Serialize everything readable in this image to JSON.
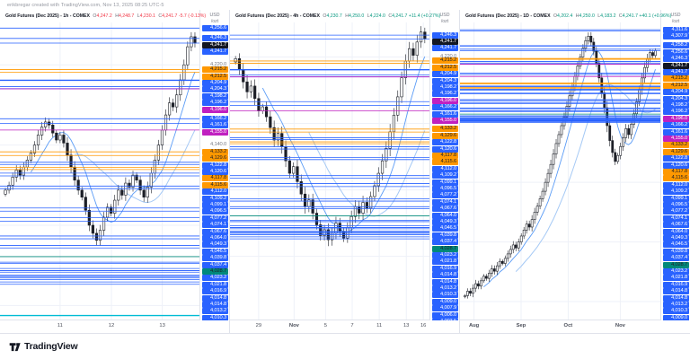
{
  "header": {
    "credit": "erikbregar created with TradingView.com, Nov 13, 2025 08:25 UTC-5"
  },
  "footer": {
    "brand": "TradingView"
  },
  "scale_header": {
    "currency": "USD",
    "unit": "/ozt"
  },
  "colors": {
    "blue": "#2962ff",
    "orange": "#ff9800",
    "magenta": "#c020c0",
    "teal": "#00897b",
    "current_bg": "#131722",
    "up": "#ffffff",
    "down": "#1c1f27",
    "candle_border": "#1c1f27",
    "grid": "#eef1f8",
    "gray_tick": "#787b86",
    "red": "#f23645",
    "green": "#089981",
    "ma_fast": "#5b9cf6",
    "ma_slow": "#a5c9f5",
    "cyan": "#00bcd4",
    "panel_border": "#e0e3eb"
  },
  "levels": [
    {
      "p": 4311.6,
      "c": "blue"
    },
    {
      "p": 4307.9,
      "c": "blue"
    },
    {
      "p": 4258.2,
      "c": "blue"
    },
    {
      "p": 4256.6,
      "c": "blue"
    },
    {
      "p": 4246.3,
      "c": "blue"
    },
    {
      "p": 4241.7,
      "c": "current"
    },
    {
      "p": 4241.7,
      "c": "blue"
    },
    {
      "p": 4215.2,
      "c": "orange"
    },
    {
      "p": 4212.5,
      "c": "orange"
    },
    {
      "p": 4204.9,
      "c": "blue"
    },
    {
      "p": 4204.3,
      "c": "blue"
    },
    {
      "p": 4198.2,
      "c": "blue"
    },
    {
      "p": 4196.2,
      "c": "blue"
    },
    {
      "p": 4196.0,
      "c": "magenta"
    },
    {
      "p": 4166.2,
      "c": "blue"
    },
    {
      "p": 4161.6,
      "c": "blue"
    },
    {
      "p": 4155.0,
      "c": "magenta"
    },
    {
      "p": 4133.2,
      "c": "orange"
    },
    {
      "p": 4129.6,
      "c": "orange"
    },
    {
      "p": 4122.8,
      "c": "blue"
    },
    {
      "p": 4120.6,
      "c": "blue"
    },
    {
      "p": 4117.8,
      "c": "orange"
    },
    {
      "p": 4115.6,
      "c": "orange"
    },
    {
      "p": 4112.0,
      "c": "blue"
    },
    {
      "p": 4109.2,
      "c": "blue"
    },
    {
      "p": 4099.1,
      "c": "blue"
    },
    {
      "p": 4096.5,
      "c": "blue"
    },
    {
      "p": 4077.2,
      "c": "blue"
    },
    {
      "p": 4074.1,
      "c": "blue"
    },
    {
      "p": 4067.6,
      "c": "blue"
    },
    {
      "p": 4064.0,
      "c": "blue"
    },
    {
      "p": 4049.3,
      "c": "blue"
    },
    {
      "p": 4046.5,
      "c": "blue"
    },
    {
      "p": 4039.8,
      "c": "blue"
    },
    {
      "p": 4037.4,
      "c": "blue"
    },
    {
      "p": 4028.7,
      "c": "teal"
    },
    {
      "p": 4023.2,
      "c": "blue"
    },
    {
      "p": 4021.8,
      "c": "blue"
    },
    {
      "p": 4016.9,
      "c": "blue"
    },
    {
      "p": 4014.8,
      "c": "blue"
    },
    {
      "p": 4014.8,
      "c": "blue"
    },
    {
      "p": 4013.2,
      "c": "blue"
    },
    {
      "p": 4010.3,
      "c": "blue"
    },
    {
      "p": 4009.0,
      "c": "blue"
    },
    {
      "p": 4007.9,
      "c": "blue"
    },
    {
      "p": 4006.0,
      "c": "blue"
    },
    {
      "p": 4003.5,
      "c": "blue"
    },
    {
      "p": 4001.1,
      "c": "blue"
    }
  ],
  "chart_data": {
    "type": "candlestick",
    "panels": [
      {
        "id": "1h",
        "title": "Gold Futures (Dec 2025) - 1h - COMEX",
        "ohlc": {
          "o": "4,247.2",
          "h": "4,248.7",
          "l": "4,230.1",
          "c": "4,241.7"
        },
        "change": "-5.7 (-0.13%)",
        "direction": "down",
        "scale": {
          "max": 4256,
          "min": 3966
        },
        "y_ticks": [
          {
            "price": 4220,
            "label": "4,220.0"
          },
          {
            "price": 4140,
            "label": "4,140.0"
          }
        ],
        "x_ticks": [
          {
            "label": "11",
            "pos": 0.3
          },
          {
            "label": "12",
            "pos": 0.556
          },
          {
            "label": "13",
            "pos": 0.81
          }
        ],
        "grid_prices": [
          4220,
          4140,
          4060,
          3980
        ],
        "extra_lines": [
          {
            "price": 3970,
            "color": "#00bcd4",
            "width": 1.4
          }
        ],
        "wick": 2.5,
        "closes": [
          4095,
          4100,
          4108,
          4115,
          4110,
          4118,
          4125,
          4132,
          4140,
          4150,
          4158,
          4163,
          4160,
          4152,
          4145,
          4150,
          4142,
          4130,
          4118,
          4105,
          4095,
          4088,
          4075,
          4060,
          4052,
          4045,
          4055,
          4068,
          4078,
          4072,
          4085,
          4095,
          4090,
          4102,
          4098,
          4110,
          4105,
          4095,
          4088,
          4098,
          4112,
          4125,
          4140,
          4155,
          4170,
          4182,
          4178,
          4190,
          4205,
          4220,
          4238,
          4248,
          4241.7
        ]
      },
      {
        "id": "4h",
        "title": "Gold Futures (Dec 2025) - 4h - COMEX",
        "ohlc": {
          "o": "4,230.7",
          "h": "4,250.0",
          "l": "4,224.0",
          "c": "4,241.7"
        },
        "change": "+11.4 (+0.27%)",
        "direction": "up",
        "scale": {
          "max": 4254,
          "min": 3904
        },
        "y_ticks": [
          {
            "price": 4220,
            "label": "4,220.0"
          }
        ],
        "x_ticks": [
          {
            "label": "29",
            "pos": 0.143
          },
          {
            "label": "Nov",
            "pos": 0.32
          },
          {
            "label": "5",
            "pos": 0.477
          },
          {
            "label": "7",
            "pos": 0.61
          },
          {
            "label": "11",
            "pos": 0.745
          },
          {
            "label": "13",
            "pos": 0.88
          },
          {
            "label": "16",
            "pos": 0.965
          }
        ],
        "grid_prices": [
          4220,
          4140,
          4060,
          3980
        ],
        "extra_lines": [],
        "wick": 4,
        "closes": [
          4218,
          4205,
          4190,
          4178,
          4185,
          4170,
          4155,
          4160,
          4148,
          4135,
          4120,
          4128,
          4112,
          4095,
          4080,
          4088,
          4070,
          4055,
          4040,
          4048,
          4032,
          4018,
          4005,
          4012,
          4000,
          4008,
          4020,
          4010,
          4002,
          4015,
          4028,
          4040,
          4032,
          4045,
          4038,
          4052,
          4065,
          4080,
          4095,
          4110,
          4130,
          4150,
          4172,
          4195,
          4215,
          4230,
          4222,
          4238,
          4250,
          4241.7
        ]
      },
      {
        "id": "1D",
        "title": "Gold Futures (Dec 2025) - 1D - COMEX",
        "ohlc": {
          "o": "4,202.4",
          "h": "4,250.0",
          "l": "4,183.2",
          "c": "4,241.7"
        },
        "change": "+40.1 (+0.96%)",
        "direction": "up",
        "scale": {
          "max": 4315,
          "min": 3340
        },
        "y_ticks": [],
        "x_ticks": [
          {
            "label": "Aug",
            "pos": 0.07
          },
          {
            "label": "Sep",
            "pos": 0.305
          },
          {
            "label": "Oct",
            "pos": 0.54
          },
          {
            "label": "Nov",
            "pos": 0.8
          }
        ],
        "grid_prices": [
          4200,
          4000,
          3800,
          3600,
          3400
        ],
        "extra_lines": [],
        "wick": 7,
        "closes": [
          3420,
          3435,
          3428,
          3445,
          3460,
          3452,
          3470,
          3485,
          3478,
          3495,
          3510,
          3502,
          3520,
          3535,
          3528,
          3545,
          3560,
          3575,
          3590,
          3580,
          3600,
          3620,
          3640,
          3660,
          3650,
          3675,
          3700,
          3720,
          3745,
          3770,
          3800,
          3830,
          3860,
          3895,
          3930,
          3960,
          3990,
          4020,
          4055,
          4090,
          4120,
          4155,
          4190,
          4220,
          4250,
          4275,
          4290,
          4270,
          4240,
          4200,
          4150,
          4100,
          4050,
          3990,
          3940,
          3900,
          3870,
          3890,
          3920,
          3950,
          3980,
          3960,
          3995,
          4030,
          4070,
          4110,
          4150,
          4185,
          4215,
          4235,
          4225,
          4241.7
        ]
      }
    ]
  }
}
